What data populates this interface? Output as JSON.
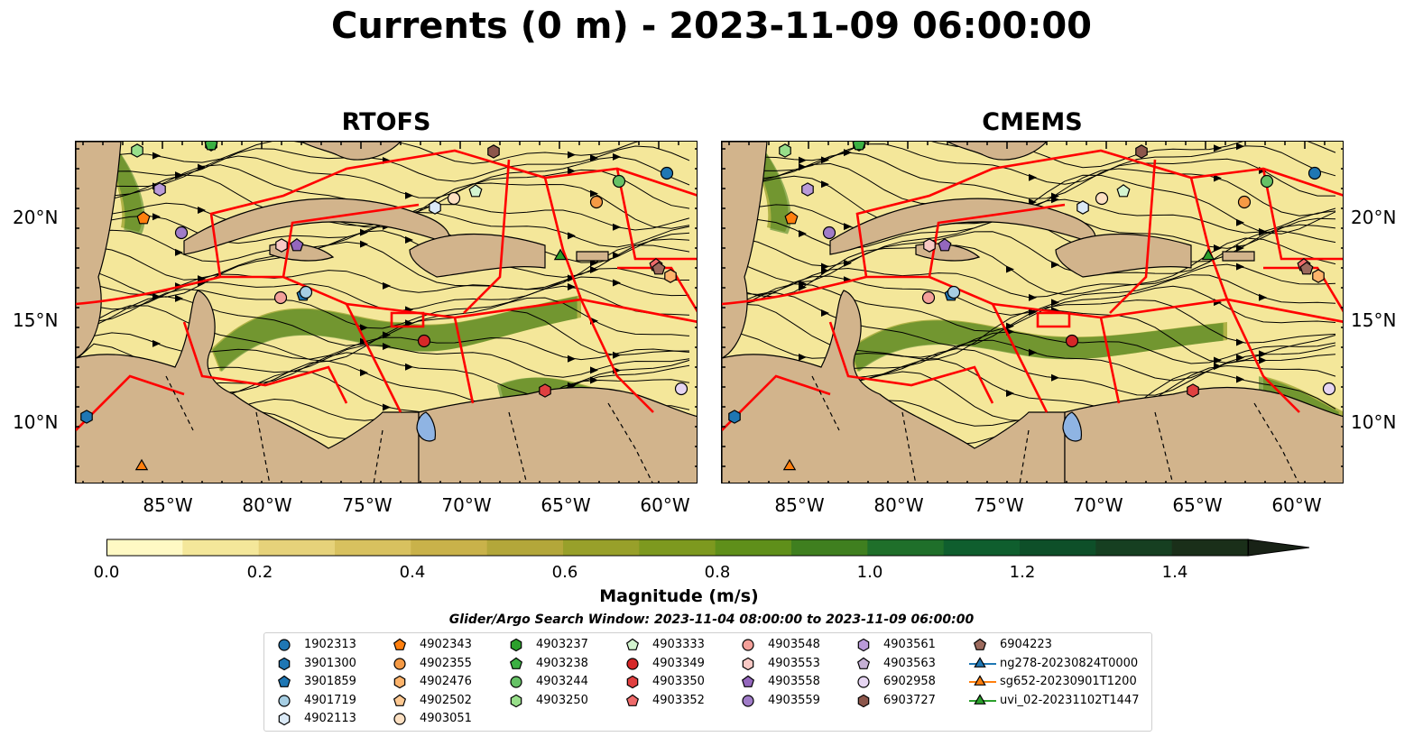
{
  "figure": {
    "title": "Currents (0 m) - 2023-11-09 06:00:00"
  },
  "panels": [
    {
      "title": "RTOFS"
    },
    {
      "title": "CMEMS"
    }
  ],
  "axes": {
    "y_ticks": [
      "20°N",
      "15°N",
      "10°N"
    ],
    "x_ticks": [
      "85°W",
      "80°W",
      "75°W",
      "70°W",
      "65°W",
      "60°W"
    ]
  },
  "colorbar": {
    "label": "Magnitude (m/s)",
    "ticks": [
      "0.0",
      "0.2",
      "0.4",
      "0.6",
      "0.8",
      "1.0",
      "1.2",
      "1.4"
    ],
    "range": [
      0,
      1.5
    ],
    "extend": "max",
    "colors": [
      "#fff9c4",
      "#f4e79a",
      "#e6d27a",
      "#d8c15f",
      "#c9b24a",
      "#b3a73a",
      "#98a02a",
      "#7d991f",
      "#5f8f1a",
      "#3f7f1f",
      "#1f6f2a",
      "#0f5e2e",
      "#0e4f29",
      "#163f21",
      "#1a2f19",
      "#182216"
    ]
  },
  "search_window": {
    "text": "Glider/Argo Search Window: 2023-11-04 08:00:00 to 2023-11-09 06:00:00"
  },
  "map_colors": {
    "land": "#d2b48c",
    "lakes": "#8fb4e3",
    "eez_lines": "#ff0000",
    "streamlines": "#000000"
  },
  "legend": {
    "columns": [
      [
        {
          "label": "1902313",
          "marker": "circle",
          "color": "#1f77b4"
        },
        {
          "label": "3901300",
          "marker": "hexagon",
          "color": "#1f77b4"
        },
        {
          "label": "3901859",
          "marker": "pentagon",
          "color": "#1f77b4"
        },
        {
          "label": "4901719",
          "marker": "circle",
          "color": "#a6cee3"
        },
        {
          "label": "4902113",
          "marker": "hexagon",
          "color": "#dbeaf7"
        }
      ],
      [
        {
          "label": "4902343",
          "marker": "pentagon",
          "color": "#ff7f0e"
        },
        {
          "label": "4902355",
          "marker": "circle",
          "color": "#f59a45"
        },
        {
          "label": "4902476",
          "marker": "hexagon",
          "color": "#fdb36b"
        },
        {
          "label": "4902502",
          "marker": "pentagon",
          "color": "#fdc891"
        },
        {
          "label": "4903051",
          "marker": "circle",
          "color": "#fde0c2"
        }
      ],
      [
        {
          "label": "4903237",
          "marker": "hexagon",
          "color": "#2ca02c"
        },
        {
          "label": "4903238",
          "marker": "pentagon",
          "color": "#3cb043"
        },
        {
          "label": "4903244",
          "marker": "circle",
          "color": "#66c266"
        },
        {
          "label": "4903250",
          "marker": "hexagon",
          "color": "#98df8a"
        }
      ],
      [
        {
          "label": "4903333",
          "marker": "pentagon",
          "color": "#d4f5d0"
        },
        {
          "label": "4903349",
          "marker": "circle",
          "color": "#d62728"
        },
        {
          "label": "4903350",
          "marker": "hexagon",
          "color": "#e04040"
        },
        {
          "label": "4903352",
          "marker": "pentagon",
          "color": "#ee6a6a"
        }
      ],
      [
        {
          "label": "4903548",
          "marker": "circle",
          "color": "#f4a09a"
        },
        {
          "label": "4903553",
          "marker": "hexagon",
          "color": "#f9c9c5"
        },
        {
          "label": "4903558",
          "marker": "pentagon",
          "color": "#9467bd"
        },
        {
          "label": "4903559",
          "marker": "circle",
          "color": "#a07cc8"
        }
      ],
      [
        {
          "label": "4903561",
          "marker": "hexagon",
          "color": "#b99ad8"
        },
        {
          "label": "4903563",
          "marker": "pentagon",
          "color": "#c5b0d5"
        },
        {
          "label": "6902958",
          "marker": "circle",
          "color": "#e6d5f2"
        },
        {
          "label": "6903727",
          "marker": "hexagon",
          "color": "#8c564b"
        }
      ],
      [
        {
          "label": "6904223",
          "marker": "pentagon",
          "color": "#9c6a5d"
        },
        {
          "label": "ng278-20230824T0000",
          "marker": "triangle-line",
          "color": "#1f77b4"
        },
        {
          "label": "sg652-20230901T1200",
          "marker": "triangle-line",
          "color": "#ff7f0e"
        },
        {
          "label": "uvi_02-20231102T1447",
          "marker": "triangle-line",
          "color": "#2ca02c"
        }
      ]
    ]
  }
}
